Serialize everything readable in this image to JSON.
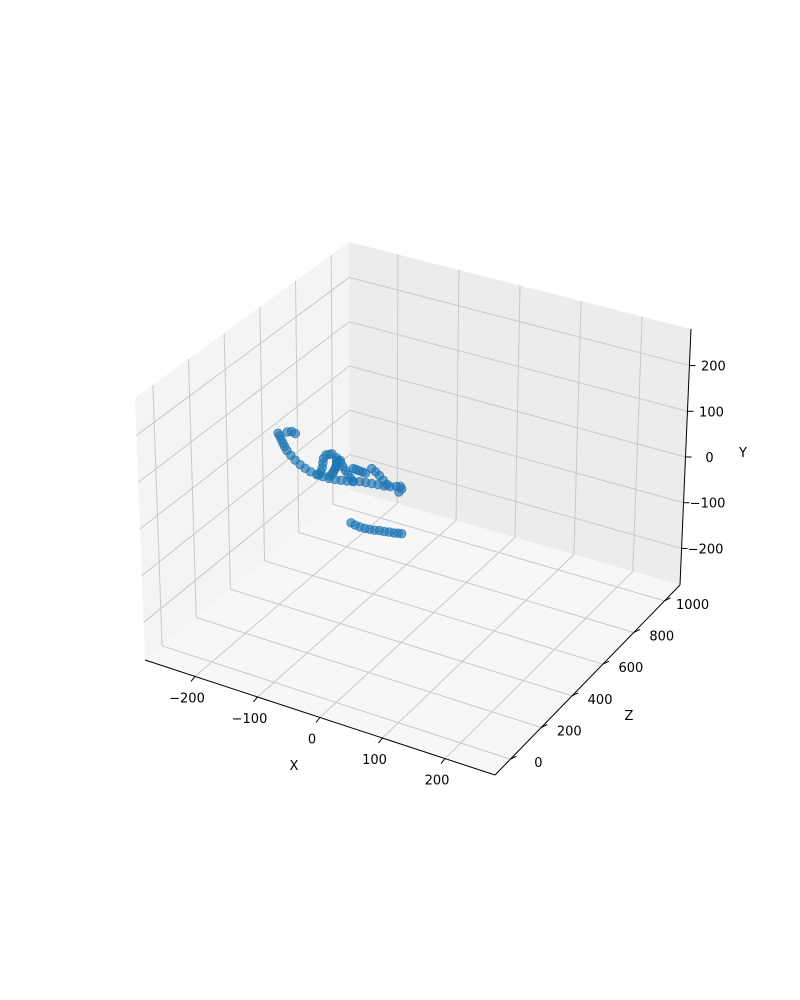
{
  "chart_data": {
    "type": "scatter",
    "projection": "3d",
    "title": "",
    "xlabel": "X",
    "ylabel": "Y",
    "zlabel": "Z",
    "xticks": [
      "−200",
      "−100",
      "0",
      "100",
      "200"
    ],
    "yticks": [
      "−200",
      "−100",
      "0",
      "100",
      "200"
    ],
    "zticks": [
      "0",
      "200",
      "400",
      "600",
      "800",
      "1000"
    ],
    "xlim": [
      -280,
      280
    ],
    "ylim": [
      -280,
      280
    ],
    "zlim": [
      -100,
      1100
    ],
    "grid": true,
    "marker_color": "#1f77b4",
    "series": [
      {
        "points": [
          [
            -116,
            205,
            100
          ],
          [
            -114,
            200,
            101
          ],
          [
            -112,
            193,
            103
          ],
          [
            -110,
            185,
            105
          ],
          [
            -108,
            178,
            107
          ],
          [
            -105,
            170,
            109
          ],
          [
            -100,
            161,
            112
          ],
          [
            -94,
            152,
            115
          ],
          [
            -87,
            144,
            118
          ],
          [
            -80,
            138,
            121
          ],
          [
            -72,
            133,
            123
          ],
          [
            -63,
            130,
            125
          ],
          [
            -54,
            128,
            127
          ],
          [
            -45,
            127,
            129
          ],
          [
            -36,
            127,
            131
          ],
          [
            -27,
            128,
            133
          ],
          [
            -18,
            129,
            135
          ],
          [
            -9,
            131,
            137
          ],
          [
            0,
            133,
            139
          ],
          [
            9,
            134,
            141
          ],
          [
            18,
            134,
            143
          ],
          [
            27,
            134,
            146
          ],
          [
            36,
            134,
            148
          ],
          [
            45,
            135,
            150
          ],
          [
            54,
            138,
            152
          ],
          [
            60,
            140,
            153
          ],
          [
            62,
            135,
            153
          ],
          [
            58,
            128,
            152
          ],
          [
            -102,
            212,
            102
          ],
          [
            -96,
            214,
            104
          ],
          [
            -91,
            211,
            106
          ],
          [
            -60,
            130,
            125
          ],
          [
            -57,
            137,
            126
          ],
          [
            -55,
            146,
            127
          ],
          [
            -54,
            156,
            127
          ],
          [
            -53,
            166,
            127
          ],
          [
            -49,
            175,
            126
          ],
          [
            -43,
            179,
            123
          ],
          [
            -38,
            183,
            120
          ],
          [
            -41,
            136,
            119
          ],
          [
            -37,
            142,
            117
          ],
          [
            -34,
            149,
            114
          ],
          [
            -31,
            156,
            111
          ],
          [
            -29,
            162,
            108
          ],
          [
            -27,
            168,
            105
          ],
          [
            -26,
            175,
            101
          ],
          [
            -24,
            181,
            97
          ],
          [
            -24,
            187,
            93
          ],
          [
            -8,
            133,
            130
          ],
          [
            -11,
            140,
            127
          ],
          [
            -14,
            148,
            123
          ],
          [
            -17,
            156,
            119
          ],
          [
            -20,
            164,
            115
          ],
          [
            -22,
            172,
            111
          ],
          [
            -22,
            178,
            108
          ],
          [
            40,
            138,
            150
          ],
          [
            35,
            146,
            146
          ],
          [
            30,
            155,
            142
          ],
          [
            25,
            162,
            138
          ],
          [
            20,
            168,
            134
          ],
          [
            -6,
            162,
            124
          ],
          [
            -2,
            161,
            126
          ],
          [
            2,
            159,
            128
          ],
          [
            7,
            158,
            130
          ],
          [
            11,
            156,
            132
          ],
          [
            30,
            106,
            -30
          ],
          [
            36,
            103,
            -28
          ],
          [
            43,
            101,
            -26
          ],
          [
            50,
            100,
            -24
          ],
          [
            57,
            100,
            -22
          ],
          [
            64,
            100,
            -20
          ],
          [
            71,
            101,
            -18
          ],
          [
            78,
            101,
            -16
          ],
          [
            85,
            102,
            -14
          ],
          [
            92,
            102,
            -12
          ],
          [
            98,
            103,
            -10
          ],
          [
            103,
            103,
            -8
          ]
        ]
      }
    ]
  }
}
